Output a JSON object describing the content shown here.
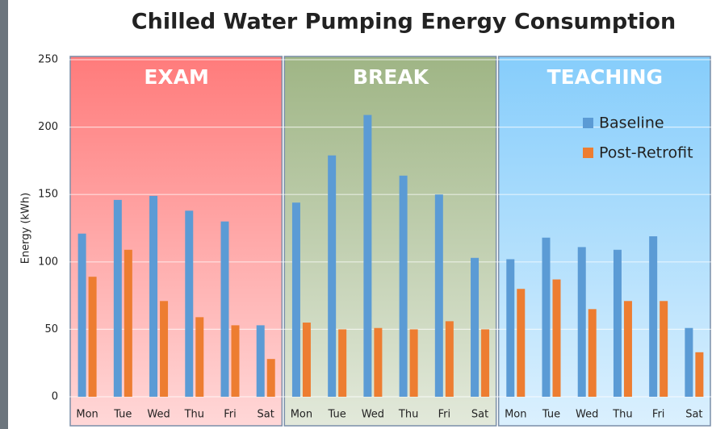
{
  "chart_data": {
    "type": "bar",
    "title": "Chilled Water Pumping Energy Consumption",
    "y_label": "Energy (kWh)",
    "categories": [
      "Mon",
      "Tue",
      "Wed",
      "Thu",
      "Fri",
      "Sat",
      "Mon",
      "Tue",
      "Wed",
      "Thu",
      "Fri",
      "Sat",
      "Mon",
      "Tue",
      "Wed",
      "Thu",
      "Fri",
      "Sat"
    ],
    "groups": [
      {
        "label": "EXAM",
        "color": "#ff7b7b"
      },
      {
        "label": "BREAK",
        "color": "#9fb585"
      },
      {
        "label": "TEACHING",
        "color": "#86cdfb"
      }
    ],
    "series": [
      {
        "name": "Baseline",
        "color": "#5b9bd5",
        "values": [
          121,
          146,
          149,
          138,
          130,
          53,
          144,
          179,
          209,
          164,
          150,
          103,
          102,
          118,
          111,
          109,
          119,
          51
        ]
      },
      {
        "name": "Post-Retrofit",
        "color": "#ed7d31",
        "values": [
          89,
          109,
          71,
          59,
          53,
          28,
          55,
          50,
          51,
          50,
          56,
          50,
          80,
          87,
          65,
          71,
          71,
          33
        ]
      }
    ],
    "ylim": [
      0,
      250
    ],
    "yticks": [
      0,
      50,
      100,
      150,
      200,
      250
    ],
    "grid": true,
    "legend": "upper right"
  }
}
